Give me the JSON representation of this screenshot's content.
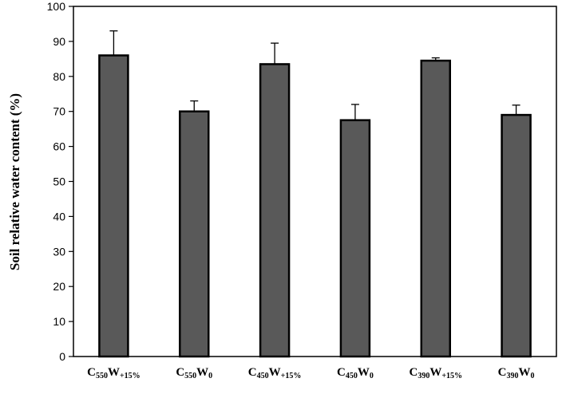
{
  "chart_data": {
    "type": "bar",
    "title": "",
    "xlabel": "",
    "ylabel": "Soil relative water content (%)",
    "ylim": [
      0,
      100
    ],
    "yticks": [
      0,
      10,
      20,
      30,
      40,
      50,
      60,
      70,
      80,
      90,
      100
    ],
    "grid": false,
    "categories": [
      {
        "main": "C",
        "sub1": "550",
        "mid": "W",
        "sub2": "+15%"
      },
      {
        "main": "C",
        "sub1": "550",
        "mid": "W",
        "sub2": "0"
      },
      {
        "main": "C",
        "sub1": "450",
        "mid": "W",
        "sub2": "+15%"
      },
      {
        "main": "C",
        "sub1": "450",
        "mid": "W",
        "sub2": "0"
      },
      {
        "main": "C",
        "sub1": "390",
        "mid": "W",
        "sub2": "+15%"
      },
      {
        "main": "C",
        "sub1": "390",
        "mid": "W",
        "sub2": "0"
      }
    ],
    "values": [
      86,
      70,
      83.5,
      67.5,
      84.5,
      69
    ],
    "errors": [
      7,
      3,
      6,
      4.5,
      0.8,
      2.8
    ],
    "colors": {
      "bar": "#595959",
      "border": "#000000"
    }
  }
}
